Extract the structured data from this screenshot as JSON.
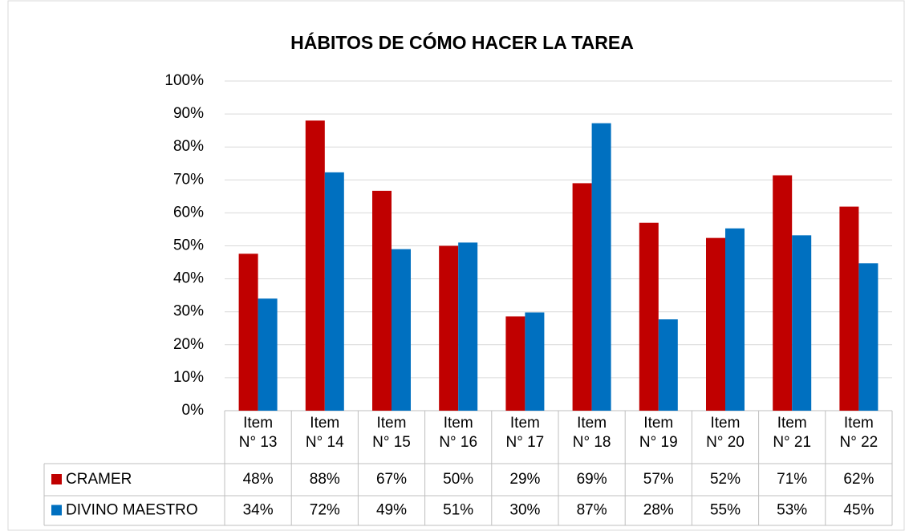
{
  "chart_data": {
    "type": "bar",
    "title": "HÁBITOS DE CÓMO HACER LA TAREA",
    "categories": [
      "Item N° 13",
      "Item N° 14",
      "Item N° 15",
      "Item N° 16",
      "Item N° 17",
      "Item N° 18",
      "Item N° 19",
      "Item N° 20",
      "Item N° 21",
      "Item N° 22"
    ],
    "series": [
      {
        "name": "CRAMER",
        "color": "#c00000",
        "values": [
          47.6,
          88,
          66.7,
          50,
          28.6,
          69,
          57,
          52.4,
          71.4,
          61.9
        ],
        "value_labels": [
          "48%",
          "88%",
          "67%",
          "50%",
          "29%",
          "69%",
          "57%",
          "52%",
          "71%",
          "62%"
        ]
      },
      {
        "name": "DIVINO MAESTRO",
        "color": "#0070c0",
        "values": [
          34,
          72.3,
          49,
          51,
          29.8,
          87.2,
          27.7,
          55.3,
          53.2,
          44.7
        ],
        "value_labels": [
          "34%",
          "72%",
          "49%",
          "51%",
          "30%",
          "87%",
          "28%",
          "55%",
          "53%",
          "45%"
        ]
      }
    ],
    "ylim": [
      0,
      100
    ],
    "yticks": [
      {
        "value": 0,
        "label": "0%"
      },
      {
        "value": 10,
        "label": "10%"
      },
      {
        "value": 20,
        "label": "20%"
      },
      {
        "value": 30,
        "label": "30%"
      },
      {
        "value": 40,
        "label": "40%"
      },
      {
        "value": 50,
        "label": "50%"
      },
      {
        "value": 60,
        "label": "60%"
      },
      {
        "value": 70,
        "label": "70%"
      },
      {
        "value": 80,
        "label": "80%"
      },
      {
        "value": 90,
        "label": "90%"
      },
      {
        "value": 100,
        "label": "100%"
      }
    ],
    "grid": true
  }
}
